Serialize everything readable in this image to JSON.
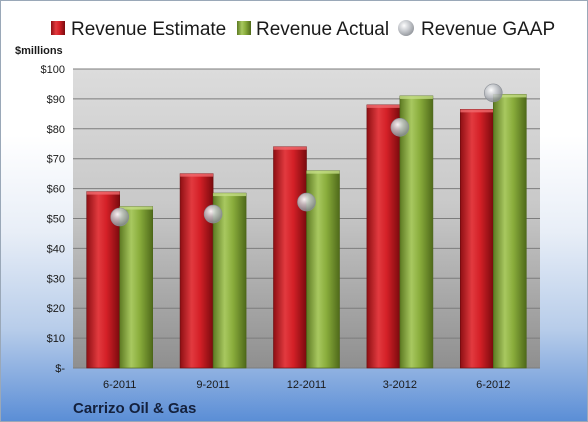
{
  "chart_data": {
    "type": "bar",
    "unit_label": "$millions",
    "company": "Carrizo Oil & Gas",
    "categories": [
      "6-2011",
      "9-2011",
      "12-2011",
      "3-2012",
      "6-2012"
    ],
    "series": [
      {
        "name": "Revenue Estimate",
        "kind": "bar",
        "color": "#d42027",
        "values": [
          59,
          65,
          74,
          88,
          86.5
        ]
      },
      {
        "name": "Revenue Actual",
        "kind": "bar",
        "color": "#8aad3c",
        "values": [
          54,
          58.5,
          66,
          91,
          91.5
        ]
      },
      {
        "name": "Revenue GAAP",
        "kind": "marker",
        "color": "#b9bcc2",
        "values": [
          50.5,
          51.5,
          55.5,
          80.5,
          92
        ]
      }
    ],
    "y_ticks": [
      "$-",
      "$10",
      "$20",
      "$30",
      "$40",
      "$50",
      "$60",
      "$70",
      "$80",
      "$90",
      "$100"
    ],
    "ylim": [
      0,
      100
    ],
    "grid": true,
    "legend_position": "top"
  }
}
